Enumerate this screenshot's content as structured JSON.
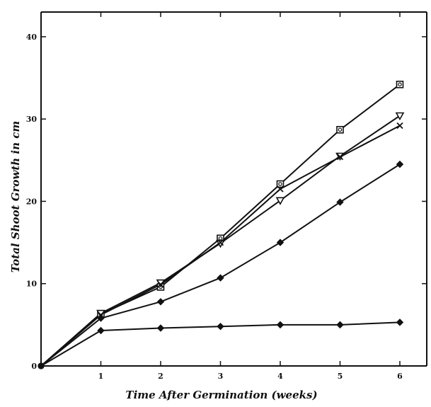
{
  "chart_data": {
    "type": "line",
    "title": "",
    "xlabel": "Time After Germination (weeks)",
    "ylabel": "Total Shoot Growth in cm",
    "x": [
      0,
      1,
      2,
      3,
      4,
      5,
      6
    ],
    "xlim": [
      0,
      6.45
    ],
    "ylim": [
      0,
      43
    ],
    "x_ticks": [
      1,
      2,
      3,
      4,
      5,
      6
    ],
    "y_ticks": [
      0,
      10,
      20,
      30,
      40
    ],
    "grid": false,
    "series": [
      {
        "marker": "square",
        "values": [
          0,
          6.3,
          9.6,
          15.5,
          22.1,
          28.7,
          34.2
        ]
      },
      {
        "marker": "triangle-down",
        "values": [
          0,
          6.4,
          10.1,
          14.9,
          20.1,
          25.5,
          30.4
        ]
      },
      {
        "marker": "x",
        "values": [
          0,
          6.2,
          9.9,
          15.0,
          21.5,
          25.4,
          29.2
        ]
      },
      {
        "marker": "diamond",
        "values": [
          0,
          5.8,
          7.8,
          10.7,
          15.0,
          19.9,
          24.5
        ]
      },
      {
        "marker": "diamond",
        "values": [
          0,
          4.3,
          4.6,
          4.8,
          5.0,
          5.0,
          5.3
        ]
      }
    ]
  },
  "colors": {
    "ink": "#111111",
    "background": "#ffffff"
  }
}
